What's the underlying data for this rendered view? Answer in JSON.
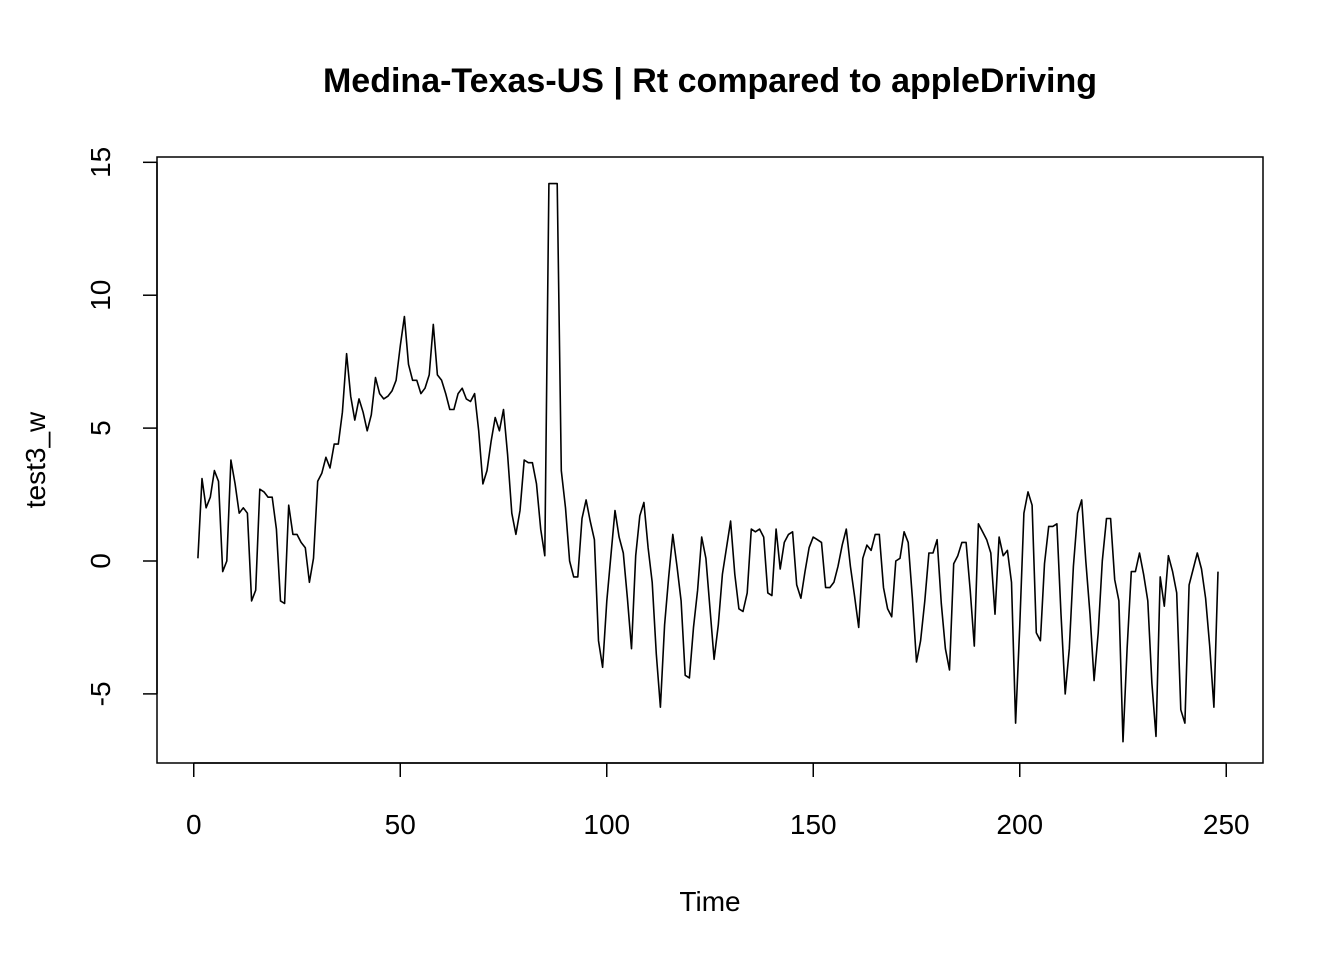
{
  "chart_data": {
    "type": "line",
    "title": "Medina-Texas-US | Rt compared to appleDriving",
    "xlabel": "Time",
    "ylabel": "test3_w",
    "xlim": [
      -8.9,
      258.9
    ],
    "ylim": [
      -7.6,
      15.2
    ],
    "xticks": [
      0,
      50,
      100,
      150,
      200,
      250
    ],
    "yticks": [
      -5,
      0,
      5,
      10,
      15
    ],
    "xtick_labels": [
      "0",
      "50",
      "100",
      "150",
      "200",
      "250"
    ],
    "ytick_labels": [
      "-5",
      "0",
      "5",
      "10",
      "15"
    ],
    "grid": false,
    "legend": "none",
    "line_color": "#000000",
    "series": [
      {
        "x": [
          1,
          2,
          3,
          4,
          5,
          6,
          7,
          8,
          9,
          10,
          11,
          12,
          13,
          14,
          15,
          16,
          17,
          18,
          19,
          20,
          21,
          22,
          23,
          24,
          25,
          26,
          27,
          28,
          29,
          30,
          31,
          32,
          33,
          34,
          35,
          36,
          37,
          38,
          39,
          40,
          41,
          42,
          43,
          44,
          45,
          46,
          47,
          48,
          49,
          50,
          51,
          52,
          53,
          54,
          55,
          56,
          57,
          58,
          59,
          60,
          61,
          62,
          63,
          64,
          65,
          66,
          67,
          68,
          69,
          70,
          71,
          72,
          73,
          74,
          75,
          76,
          77,
          78,
          79,
          80,
          81,
          82,
          83,
          84,
          85,
          86,
          87,
          88,
          89,
          90,
          91,
          92,
          93,
          94,
          95,
          96,
          97,
          98,
          99,
          100,
          101,
          102,
          103,
          104,
          105,
          106,
          107,
          108,
          109,
          110,
          111,
          112,
          113,
          114,
          115,
          116,
          117,
          118,
          119,
          120,
          121,
          122,
          123,
          124,
          125,
          126,
          127,
          128,
          129,
          130,
          131,
          132,
          133,
          134,
          135,
          136,
          137,
          138,
          139,
          140,
          141,
          142,
          143,
          144,
          145,
          146,
          147,
          148,
          149,
          150,
          151,
          152,
          153,
          154,
          155,
          156,
          157,
          158,
          159,
          160,
          161,
          162,
          163,
          164,
          165,
          166,
          167,
          168,
          169,
          170,
          171,
          172,
          173,
          174,
          175,
          176,
          177,
          178,
          179,
          180,
          181,
          182,
          183,
          184,
          185,
          186,
          187,
          188,
          189,
          190,
          191,
          192,
          193,
          194,
          195,
          196,
          197,
          198,
          199,
          200,
          201,
          202,
          203,
          204,
          205,
          206,
          207,
          208,
          209,
          210,
          211,
          212,
          213,
          214,
          215,
          216,
          217,
          218,
          219,
          220,
          221,
          222,
          223,
          224,
          225,
          226,
          227,
          228,
          229,
          230,
          231,
          232,
          233,
          234,
          235,
          236,
          237,
          238,
          239,
          240,
          241,
          242,
          243,
          244,
          245,
          246,
          247,
          248
        ],
        "y": [
          0.1,
          3.1,
          2.0,
          2.4,
          3.4,
          3.0,
          -0.4,
          0.0,
          3.8,
          2.9,
          1.8,
          2.0,
          1.8,
          -1.5,
          -1.1,
          2.7,
          2.6,
          2.4,
          2.4,
          1.2,
          -1.5,
          -1.6,
          2.1,
          1.0,
          1.0,
          0.7,
          0.5,
          -0.8,
          0.1,
          3.0,
          3.3,
          3.9,
          3.5,
          4.4,
          4.4,
          5.6,
          7.8,
          6.2,
          5.3,
          6.1,
          5.6,
          4.9,
          5.5,
          6.9,
          6.3,
          6.1,
          6.2,
          6.4,
          6.8,
          8.1,
          9.2,
          7.4,
          6.8,
          6.8,
          6.3,
          6.5,
          7.0,
          8.9,
          7.0,
          6.8,
          6.3,
          5.7,
          5.7,
          6.3,
          6.5,
          6.1,
          6.0,
          6.3,
          4.9,
          2.9,
          3.4,
          4.5,
          5.4,
          4.9,
          5.7,
          4.0,
          1.8,
          1.0,
          1.9,
          3.8,
          3.7,
          3.7,
          2.9,
          1.2,
          0.2,
          14.2,
          14.2,
          14.2,
          3.4,
          2.0,
          0.0,
          -0.6,
          -0.6,
          1.6,
          2.3,
          1.5,
          0.8,
          -3.0,
          -4.0,
          -1.5,
          0.2,
          1.9,
          0.9,
          0.3,
          -1.4,
          -3.3,
          0.2,
          1.7,
          2.2,
          0.5,
          -0.8,
          -3.5,
          -5.5,
          -2.4,
          -0.6,
          1.0,
          -0.2,
          -1.5,
          -4.3,
          -4.4,
          -2.5,
          -1.1,
          0.9,
          0.1,
          -1.8,
          -3.7,
          -2.4,
          -0.5,
          0.5,
          1.5,
          -0.5,
          -1.8,
          -1.9,
          -1.2,
          1.2,
          1.1,
          1.2,
          0.9,
          -1.2,
          -1.3,
          1.2,
          -0.3,
          0.7,
          1.0,
          1.1,
          -0.9,
          -1.4,
          -0.4,
          0.5,
          0.9,
          0.8,
          0.7,
          -1.0,
          -1.0,
          -0.8,
          -0.2,
          0.6,
          1.2,
          -0.2,
          -1.3,
          -2.5,
          0.1,
          0.6,
          0.4,
          1.0,
          1.0,
          -1.0,
          -1.8,
          -2.1,
          0.0,
          0.1,
          1.1,
          0.7,
          -1.4,
          -3.8,
          -3.0,
          -1.5,
          0.3,
          0.3,
          0.8,
          -1.6,
          -3.3,
          -4.1,
          -0.1,
          0.2,
          0.7,
          0.7,
          -1.1,
          -3.2,
          1.4,
          1.1,
          0.8,
          0.3,
          -2.0,
          0.9,
          0.2,
          0.4,
          -0.8,
          -6.1,
          -2.5,
          1.8,
          2.6,
          2.1,
          -2.7,
          -3.0,
          -0.1,
          1.3,
          1.3,
          1.4,
          -2.0,
          -5.0,
          -3.3,
          -0.2,
          1.8,
          2.3,
          0.0,
          -2.0,
          -4.5,
          -2.7,
          0.0,
          1.6,
          1.6,
          -0.7,
          -1.5,
          -6.8,
          -3.3,
          -0.4,
          -0.4,
          0.3,
          -0.5,
          -1.5,
          -4.6,
          -6.6,
          -0.6,
          -1.7,
          0.2,
          -0.4,
          -1.2,
          -5.6,
          -6.1,
          -0.9,
          -0.3,
          0.3,
          -0.3,
          -1.4,
          -3.2,
          -5.5,
          -0.4
        ]
      }
    ]
  }
}
